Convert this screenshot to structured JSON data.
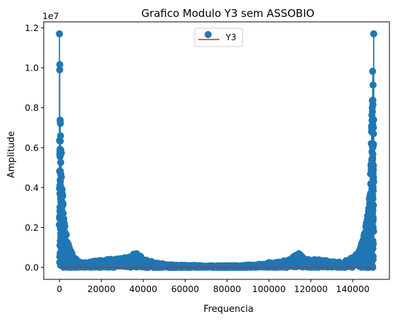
{
  "chart_data": {
    "type": "stem",
    "title": "Grafico Modulo Y3 sem ASSOBIO",
    "xlabel": "Frequencia",
    "ylabel": "Amplitude",
    "y_offset_label": "1e7",
    "xlim": [
      -7500,
      157500
    ],
    "ylim": [
      -600000,
      12300000
    ],
    "xticks": [
      0,
      20000,
      40000,
      60000,
      80000,
      100000,
      120000,
      140000
    ],
    "xtick_labels": [
      "0",
      "20000",
      "40000",
      "60000",
      "80000",
      "100000",
      "120000",
      "140000"
    ],
    "yticks": [
      0,
      2000000,
      4000000,
      6000000,
      8000000,
      10000000,
      12000000
    ],
    "ytick_labels": [
      "0.0",
      "0.2",
      "0.4",
      "0.6",
      "0.8",
      "1.0",
      "1.2"
    ],
    "legend": {
      "label": "Y3",
      "position": "upper center"
    },
    "colors": {
      "marker": "#1f77b4",
      "baseline": "#d62728"
    },
    "series": [
      {
        "name": "Y3",
        "x_start": 0,
        "x_end": 150000,
        "peak_value": 11700000,
        "profile": [
          [
            0,
            11700000
          ],
          [
            150,
            10900000
          ],
          [
            300,
            10500000
          ],
          [
            500,
            8400000
          ],
          [
            700,
            6700000
          ],
          [
            1000,
            5200000
          ],
          [
            1400,
            4000000
          ],
          [
            1800,
            3000000
          ],
          [
            2500,
            2300000
          ],
          [
            3500,
            1400000
          ],
          [
            5000,
            900000
          ],
          [
            7000,
            500000
          ],
          [
            10000,
            250000
          ],
          [
            15000,
            280000
          ],
          [
            20000,
            380000
          ],
          [
            25000,
            420000
          ],
          [
            30000,
            500000
          ],
          [
            34000,
            580000
          ],
          [
            36500,
            780000
          ],
          [
            38000,
            600000
          ],
          [
            42000,
            380000
          ],
          [
            46000,
            260000
          ],
          [
            50000,
            160000
          ],
          [
            55000,
            120000
          ],
          [
            65000,
            100000
          ],
          [
            75000,
            80000
          ],
          [
            85000,
            90000
          ],
          [
            95000,
            150000
          ],
          [
            100000,
            250000
          ],
          [
            105000,
            300000
          ],
          [
            110000,
            450000
          ],
          [
            113500,
            780000
          ],
          [
            116000,
            600000
          ],
          [
            120000,
            420000
          ],
          [
            125000,
            380000
          ],
          [
            130000,
            300000
          ],
          [
            135000,
            250000
          ],
          [
            140000,
            500000
          ],
          [
            143000,
            900000
          ],
          [
            145000,
            1400000
          ],
          [
            146500,
            2300000
          ],
          [
            147500,
            3000000
          ],
          [
            148200,
            4000000
          ],
          [
            148600,
            5200000
          ],
          [
            148900,
            6700000
          ],
          [
            149200,
            8400000
          ],
          [
            149500,
            10500000
          ],
          [
            149700,
            10900000
          ],
          [
            150000,
            11700000
          ]
        ]
      }
    ]
  }
}
